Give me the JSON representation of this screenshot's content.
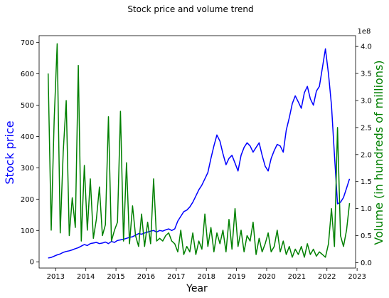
{
  "chart_data": {
    "type": "line",
    "title": "Stock price and volume trend",
    "xlabel": "Year",
    "ylabel_left": "Stock price",
    "ylabel_right": "Volume (in hundreds of millions)",
    "right_axis_multiplier": "1e8",
    "xlim": [
      2012.45,
      2022.95
    ],
    "ylim_left": [
      -20,
      722
    ],
    "ylim_right": [
      -0.1,
      4.2
    ],
    "x_ticks": [
      2013,
      2014,
      2015,
      2016,
      2017,
      2018,
      2019,
      2020,
      2021,
      2022,
      2023
    ],
    "x_tick_labels": [
      "2013",
      "2014",
      "2015",
      "2016",
      "2017",
      "2018",
      "2019",
      "2020",
      "2021",
      "2022",
      "2023"
    ],
    "y_left_ticks": [
      0,
      100,
      200,
      300,
      400,
      500,
      600,
      700
    ],
    "y_left_tick_labels": [
      "0",
      "100",
      "200",
      "300",
      "400",
      "500",
      "600",
      "700"
    ],
    "y_right_ticks": [
      0.0,
      0.5,
      1.0,
      1.5,
      2.0,
      2.5,
      3.0,
      3.5,
      4.0
    ],
    "y_right_tick_labels": [
      "0.0",
      "0.5",
      "1.0",
      "1.5",
      "2.0",
      "2.5",
      "3.0",
      "3.5",
      "4.0"
    ],
    "grid": false,
    "colors": {
      "price": "#0000ff",
      "volume": "#008000",
      "ylabel_left": "#0000ff",
      "ylabel_right": "#008000"
    },
    "series": [
      {
        "axis": "left",
        "x": [
          2012.75,
          2012.85,
          2012.95,
          2013.05,
          2013.15,
          2013.25,
          2013.35,
          2013.45,
          2013.55,
          2013.65,
          2013.75,
          2013.85,
          2013.95,
          2014.05,
          2014.15,
          2014.25,
          2014.35,
          2014.45,
          2014.55,
          2014.65,
          2014.75,
          2014.85,
          2014.95,
          2015.05,
          2015.15,
          2015.25,
          2015.35,
          2015.45,
          2015.55,
          2015.65,
          2015.75,
          2015.85,
          2015.95,
          2016.05,
          2016.15,
          2016.25,
          2016.35,
          2016.45,
          2016.55,
          2016.65,
          2016.75,
          2016.85,
          2016.95,
          2017.05,
          2017.15,
          2017.25,
          2017.35,
          2017.45,
          2017.55,
          2017.65,
          2017.75,
          2017.85,
          2017.95,
          2018.05,
          2018.15,
          2018.25,
          2018.35,
          2018.45,
          2018.55,
          2018.65,
          2018.75,
          2018.85,
          2018.95,
          2019.05,
          2019.15,
          2019.25,
          2019.35,
          2019.45,
          2019.55,
          2019.65,
          2019.75,
          2019.85,
          2019.95,
          2020.05,
          2020.15,
          2020.25,
          2020.35,
          2020.45,
          2020.55,
          2020.65,
          2020.75,
          2020.85,
          2020.95,
          2021.05,
          2021.15,
          2021.25,
          2021.35,
          2021.45,
          2021.55,
          2021.65,
          2021.75,
          2021.85,
          2021.95,
          2022.05,
          2022.15,
          2022.25,
          2022.35,
          2022.45,
          2022.55,
          2022.65,
          2022.75
        ],
        "values": [
          12,
          14,
          18,
          22,
          25,
          30,
          33,
          35,
          38,
          42,
          45,
          50,
          55,
          52,
          58,
          60,
          62,
          58,
          60,
          63,
          58,
          65,
          62,
          68,
          70,
          72,
          75,
          78,
          80,
          85,
          90,
          88,
          92,
          95,
          98,
          100,
          95,
          100,
          98,
          102,
          105,
          100,
          105,
          130,
          145,
          160,
          165,
          175,
          190,
          210,
          230,
          245,
          265,
          285,
          330,
          370,
          405,
          385,
          345,
          310,
          330,
          340,
          315,
          290,
          340,
          365,
          380,
          370,
          350,
          365,
          380,
          340,
          305,
          290,
          330,
          355,
          375,
          370,
          350,
          420,
          460,
          505,
          530,
          510,
          490,
          540,
          560,
          520,
          500,
          545,
          560,
          620,
          680,
          600,
          500,
          340,
          185,
          190,
          205,
          235,
          265
        ]
      },
      {
        "axis": "right",
        "x": [
          2012.75,
          2012.85,
          2012.95,
          2013.05,
          2013.15,
          2013.25,
          2013.35,
          2013.45,
          2013.55,
          2013.65,
          2013.75,
          2013.85,
          2013.95,
          2014.05,
          2014.15,
          2014.25,
          2014.35,
          2014.45,
          2014.55,
          2014.65,
          2014.75,
          2014.85,
          2014.95,
          2015.05,
          2015.15,
          2015.25,
          2015.35,
          2015.45,
          2015.55,
          2015.65,
          2015.75,
          2015.85,
          2015.95,
          2016.05,
          2016.15,
          2016.25,
          2016.35,
          2016.45,
          2016.55,
          2016.65,
          2016.75,
          2016.85,
          2016.95,
          2017.05,
          2017.15,
          2017.25,
          2017.35,
          2017.45,
          2017.55,
          2017.65,
          2017.75,
          2017.85,
          2017.95,
          2018.05,
          2018.15,
          2018.25,
          2018.35,
          2018.45,
          2018.55,
          2018.65,
          2018.75,
          2018.85,
          2018.95,
          2019.05,
          2019.15,
          2019.25,
          2019.35,
          2019.45,
          2019.55,
          2019.65,
          2019.75,
          2019.85,
          2019.95,
          2020.05,
          2020.15,
          2020.25,
          2020.35,
          2020.45,
          2020.55,
          2020.65,
          2020.75,
          2020.85,
          2020.95,
          2021.05,
          2021.15,
          2021.25,
          2021.35,
          2021.45,
          2021.55,
          2021.65,
          2021.75,
          2021.85,
          2021.95,
          2022.05,
          2022.15,
          2022.25,
          2022.35,
          2022.45,
          2022.55,
          2022.65,
          2022.75
        ],
        "values": [
          3.5,
          0.6,
          2.65,
          4.05,
          0.55,
          2.05,
          3.0,
          0.5,
          1.2,
          0.65,
          3.65,
          0.4,
          1.8,
          0.6,
          1.55,
          0.45,
          0.8,
          1.4,
          0.5,
          0.7,
          2.7,
          0.4,
          0.6,
          0.75,
          2.8,
          0.4,
          1.85,
          0.35,
          1.05,
          0.5,
          0.3,
          0.9,
          0.3,
          0.75,
          0.35,
          1.55,
          0.4,
          0.45,
          0.4,
          0.5,
          0.55,
          0.4,
          0.35,
          0.2,
          0.6,
          0.15,
          0.3,
          0.2,
          0.55,
          0.15,
          0.4,
          0.25,
          0.9,
          0.3,
          0.65,
          0.2,
          0.55,
          0.35,
          0.6,
          0.2,
          0.8,
          0.25,
          1.0,
          0.3,
          0.6,
          0.2,
          0.5,
          0.4,
          0.75,
          0.15,
          0.45,
          0.2,
          0.35,
          0.55,
          0.2,
          0.3,
          0.6,
          0.2,
          0.4,
          0.15,
          0.3,
          0.1,
          0.25,
          0.15,
          0.3,
          0.1,
          0.35,
          0.15,
          0.25,
          0.12,
          0.2,
          0.15,
          0.1,
          0.35,
          1.0,
          0.3,
          2.5,
          0.5,
          0.3,
          0.6,
          1.1
        ]
      }
    ]
  }
}
